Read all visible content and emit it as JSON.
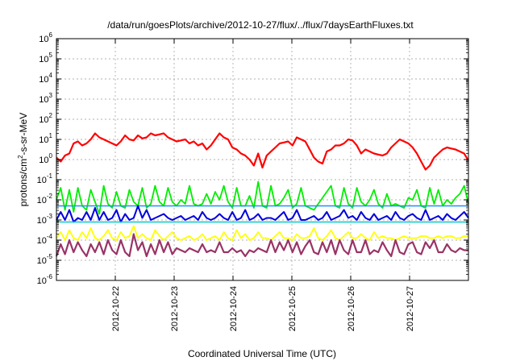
{
  "chart_data": {
    "type": "line",
    "title": "/data/run/goesPlots/archive/2012-10-27/flux/../flux/7daysEarthFluxes.txt",
    "xlabel": "Coordinated Universal Time (UTC)",
    "ylabel": "protons/cm²-s-sr-MeV",
    "ylabel_parts": {
      "pre": "protons/cm",
      "sup": "2",
      "post": "-s-sr-MeV"
    },
    "yscale": "log",
    "ylim_exp": [
      -6,
      6
    ],
    "xlim": [
      "2012-10-21T00:00",
      "2012-10-28T00:00"
    ],
    "grid": true,
    "yticks": [
      {
        "base": "10",
        "exp": "6"
      },
      {
        "base": "10",
        "exp": "5"
      },
      {
        "base": "10",
        "exp": "4"
      },
      {
        "base": "10",
        "exp": "3"
      },
      {
        "base": "10",
        "exp": "2"
      },
      {
        "base": "10",
        "exp": "1"
      },
      {
        "base": "10",
        "exp": "0"
      },
      {
        "base": "10",
        "exp": "-1"
      },
      {
        "base": "10",
        "exp": "-2"
      },
      {
        "base": "10",
        "exp": "-3"
      },
      {
        "base": "10",
        "exp": "-4"
      },
      {
        "base": "10",
        "exp": "-5"
      },
      {
        "base": "10",
        "exp": "-6"
      }
    ],
    "xticks": [
      "2012-10-22",
      "2012-10-23",
      "2012-10-24",
      "2012-10-25",
      "2012-10-26",
      "2012-10-27"
    ],
    "series": [
      {
        "color": "#ff0000",
        "width": 2.2,
        "log10_values": [
          0.1,
          -0.1,
          0.2,
          0.3,
          0.8,
          0.9,
          0.7,
          0.8,
          1.0,
          1.3,
          1.1,
          1.0,
          0.9,
          0.8,
          0.7,
          0.9,
          1.2,
          1.0,
          0.95,
          1.2,
          1.05,
          1.1,
          1.3,
          1.2,
          1.25,
          1.3,
          1.1,
          1.0,
          0.9,
          0.95,
          1.0,
          0.8,
          0.9,
          0.7,
          0.8,
          0.5,
          0.7,
          1.0,
          1.3,
          1.1,
          1.0,
          0.6,
          0.5,
          0.3,
          0.2,
          0.0,
          -0.3,
          0.3,
          -0.4,
          0.2,
          0.4,
          0.6,
          0.8,
          0.85,
          0.9,
          0.7,
          1.1,
          1.0,
          0.9,
          0.5,
          0.1,
          -0.1,
          -0.2,
          0.4,
          0.5,
          0.7,
          0.7,
          0.8,
          1.0,
          0.95,
          0.7,
          0.3,
          0.5,
          0.4,
          0.3,
          0.25,
          0.2,
          0.3,
          0.6,
          0.8,
          1.0,
          0.9,
          0.8,
          0.6,
          0.3,
          -0.1,
          -0.5,
          -0.3,
          0.1,
          0.3,
          0.5,
          0.6,
          0.55,
          0.5,
          0.4,
          0.3,
          -0.05
        ]
      },
      {
        "color": "#00ee00",
        "width": 1.8,
        "log10_values": [
          -2.0,
          -1.4,
          -2.5,
          -1.5,
          -2.6,
          -1.4,
          -2.3,
          -2.5,
          -1.5,
          -2.1,
          -2.7,
          -1.3,
          -2.2,
          -2.4,
          -1.6,
          -2.3,
          -2.4,
          -1.5,
          -2.1,
          -2.3,
          -1.4,
          -2.4,
          -2.2,
          -1.3,
          -2.1,
          -2.3,
          -1.4,
          -2.1,
          -2.3,
          -2.0,
          -2.2,
          -1.3,
          -2.2,
          -2.3,
          -2.2,
          -1.7,
          -2.2,
          -1.6,
          -2.0,
          -1.3,
          -2.1,
          -2.4,
          -1.4,
          -2.3,
          -2.3,
          -1.8,
          -2.4,
          -1.1,
          -2.3,
          -2.4,
          -1.3,
          -2.3,
          -2.2,
          -1.9,
          -1.5,
          -2.4,
          -2.2,
          -1.4,
          -2.3,
          -2.4,
          -2.5,
          -2.2,
          -1.9,
          -1.6,
          -1.3,
          -2.3,
          -2.4,
          -1.4,
          -2.2,
          -2.4,
          -1.4,
          -2.1,
          -2.3,
          -2.0,
          -1.5,
          -2.2,
          -2.4,
          -1.7,
          -2.3,
          -2.2,
          -2.3,
          -2.4,
          -1.9,
          -2.0,
          -1.5,
          -2.3,
          -2.4,
          -1.4,
          -2.2,
          -1.5,
          -2.3,
          -2.0,
          -2.2,
          -1.9,
          -1.7,
          -1.3,
          -2.2
        ]
      },
      {
        "color": "#1e90ff",
        "width": 1.6,
        "log10_values": [
          -2.3,
          -2.3,
          -2.3,
          -2.3,
          -2.3,
          -2.3,
          -2.3,
          -2.3,
          -2.3,
          -2.3,
          -2.3,
          -2.3,
          -2.3,
          -2.3,
          -2.3,
          -2.3,
          -2.3,
          -2.3,
          -2.3,
          -2.3,
          -2.3,
          -2.3,
          -2.3,
          -2.3,
          -2.3,
          -2.3,
          -2.3,
          -2.3,
          -2.3,
          -2.3,
          -2.3,
          -2.3,
          -2.3,
          -2.3,
          -2.3,
          -2.3,
          -2.3,
          -2.3,
          -2.3,
          -2.3,
          -2.3,
          -2.3,
          -2.3,
          -2.3,
          -2.3,
          -2.3,
          -2.3,
          -2.3,
          -2.3,
          -2.3,
          -2.3,
          -2.3,
          -2.3,
          -2.3,
          -2.3,
          -2.3,
          -2.3,
          -2.3,
          -2.3,
          -2.3,
          -2.3,
          -2.3,
          -2.3,
          -2.3,
          -2.3,
          -2.3,
          -2.3,
          -2.3,
          -2.3,
          -2.3,
          -2.3,
          -2.3,
          -2.3,
          -2.3,
          -2.3,
          -2.3,
          -2.3,
          -2.3,
          -2.3,
          -2.3,
          -2.3,
          -2.3,
          -2.3,
          -2.3,
          -2.3,
          -2.3,
          -2.3,
          -2.3,
          -2.3,
          -2.3,
          -2.3,
          -2.3,
          -2.3,
          -2.3,
          -2.3,
          -2.3,
          -2.3
        ]
      },
      {
        "color": "#0000dd",
        "width": 2.0,
        "log10_values": [
          -3.0,
          -2.6,
          -3.0,
          -2.5,
          -3.1,
          -2.9,
          -3.0,
          -2.6,
          -3.0,
          -2.4,
          -3.0,
          -2.6,
          -3.0,
          -2.9,
          -2.5,
          -3.1,
          -2.7,
          -3.0,
          -2.9,
          -2.3,
          -2.9,
          -2.5,
          -3.0,
          -2.9,
          -2.8,
          -2.7,
          -2.9,
          -3.0,
          -2.9,
          -2.8,
          -3.0,
          -2.9,
          -2.8,
          -3.0,
          -2.6,
          -2.9,
          -3.0,
          -2.9,
          -2.7,
          -2.9,
          -3.0,
          -2.6,
          -3.0,
          -2.9,
          -2.5,
          -3.0,
          -2.9,
          -2.7,
          -3.0,
          -2.9,
          -2.9,
          -3.0,
          -2.8,
          -2.6,
          -3.0,
          -2.9,
          -2.5,
          -3.0,
          -3.0,
          -2.9,
          -2.8,
          -3.0,
          -2.9,
          -2.6,
          -3.0,
          -2.9,
          -2.8,
          -2.5,
          -2.9,
          -2.8,
          -3.0,
          -2.6,
          -2.9,
          -3.0,
          -2.7,
          -3.0,
          -2.9,
          -2.8,
          -3.0,
          -2.6,
          -2.9,
          -3.0,
          -2.8,
          -2.7,
          -2.9,
          -3.0,
          -2.5,
          -3.0,
          -2.9,
          -2.8,
          -3.0,
          -2.7,
          -2.9,
          -3.0,
          -2.8,
          -2.6,
          -2.9
        ]
      },
      {
        "color": "#00cccc",
        "width": 1.6,
        "log10_values": [
          -3.05,
          -3.1,
          -3.1,
          -3.1,
          -3.1,
          -3.1,
          -3.1,
          -3.1,
          -3.1,
          -3.1,
          -3.1,
          -3.1,
          -3.1,
          -3.1,
          -3.1,
          -3.1,
          -3.1,
          -3.1,
          -3.1,
          -3.1,
          -3.1,
          -3.1,
          -3.1,
          -3.1,
          -3.1,
          -3.1,
          -3.1,
          -3.1,
          -3.1,
          -3.1,
          -3.1,
          -3.1,
          -3.1,
          -3.1,
          -3.1,
          -3.1,
          -3.1,
          -3.1,
          -3.1,
          -3.1,
          -3.1,
          -3.1,
          -3.1,
          -3.1,
          -3.1,
          -3.1,
          -3.1,
          -3.1,
          -3.1,
          -3.1,
          -3.1,
          -3.1,
          -3.1,
          -3.1,
          -3.1,
          -3.1,
          -3.1,
          -3.1,
          -3.1,
          -3.1,
          -3.1,
          -3.1,
          -3.1,
          -3.1,
          -3.1,
          -3.1,
          -3.1,
          -3.1,
          -3.1,
          -3.1,
          -3.1,
          -3.1,
          -3.1,
          -3.1,
          -3.1,
          -3.1,
          -3.1,
          -3.1,
          -3.1,
          -3.1,
          -3.1,
          -3.1,
          -3.1,
          -3.1,
          -3.1,
          -3.1,
          -3.1,
          -3.1,
          -3.1,
          -3.1,
          -3.1,
          -3.1,
          -3.1,
          -3.1,
          -3.1,
          -3.1,
          -3.1
        ]
      },
      {
        "color": "#ffff00",
        "width": 1.8,
        "log10_values": [
          -3.9,
          -3.6,
          -4.0,
          -3.5,
          -3.9,
          -4.0,
          -3.6,
          -3.9,
          -3.4,
          -3.9,
          -4.0,
          -3.8,
          -3.5,
          -3.9,
          -4.0,
          -3.6,
          -3.9,
          -3.8,
          -3.3,
          -3.9,
          -3.7,
          -3.9,
          -4.0,
          -3.5,
          -3.8,
          -4.0,
          -3.8,
          -3.6,
          -3.9,
          -4.0,
          -3.9,
          -3.8,
          -4.0,
          -3.9,
          -3.7,
          -4.0,
          -3.9,
          -3.8,
          -4.0,
          -3.6,
          -3.9,
          -4.0,
          -3.5,
          -3.9,
          -3.7,
          -4.0,
          -3.9,
          -3.6,
          -3.9,
          -3.9,
          -4.0,
          -3.8,
          -3.6,
          -3.9,
          -3.9,
          -4.0,
          -3.7,
          -3.9,
          -3.9,
          -3.8,
          -3.4,
          -3.9,
          -4.0,
          -3.8,
          -3.5,
          -3.9,
          -4.0,
          -3.8,
          -3.6,
          -3.9,
          -3.9,
          -3.7,
          -3.9,
          -4.0,
          -3.6,
          -3.9,
          -3.8,
          -3.9,
          -3.9,
          -4.0,
          -3.9,
          -3.8,
          -3.9,
          -3.9,
          -3.9,
          -3.8,
          -3.8,
          -3.9,
          -3.9,
          -3.8,
          -3.9,
          -3.8,
          -3.8,
          -3.9,
          -3.9,
          -3.8,
          -3.8
        ]
      },
      {
        "color": "#993366",
        "width": 2.2,
        "log10_values": [
          -4.8,
          -4.2,
          -4.7,
          -4.0,
          -4.6,
          -4.1,
          -4.5,
          -4.8,
          -4.2,
          -4.6,
          -4.1,
          -4.7,
          -4.0,
          -4.5,
          -4.7,
          -4.0,
          -4.6,
          -4.8,
          -3.7,
          -4.5,
          -4.1,
          -4.8,
          -4.2,
          -4.7,
          -4.0,
          -4.6,
          -4.1,
          -4.7,
          -4.4,
          -4.5,
          -4.6,
          -4.4,
          -4.5,
          -4.6,
          -4.2,
          -4.6,
          -4.5,
          -4.6,
          -4.1,
          -4.6,
          -4.6,
          -4.4,
          -4.6,
          -4.5,
          -4.8,
          -4.5,
          -4.6,
          -4.4,
          -4.5,
          -4.6,
          -4.0,
          -4.6,
          -4.1,
          -4.5,
          -4.0,
          -4.6,
          -4.1,
          -4.7,
          -4.3,
          -4.0,
          -4.6,
          -4.7,
          -4.1,
          -4.6,
          -4.0,
          -4.7,
          -4.0,
          -4.5,
          -4.7,
          -4.0,
          -4.6,
          -4.6,
          -4.0,
          -4.7,
          -4.5,
          -4.6,
          -4.1,
          -4.5,
          -4.8,
          -4.0,
          -4.6,
          -4.7,
          -4.2,
          -4.1,
          -4.6,
          -4.7,
          -4.1,
          -4.4,
          -4.0,
          -4.6,
          -4.6,
          -4.2,
          -4.5,
          -4.6,
          -4.4,
          -4.5,
          -4.5
        ]
      }
    ]
  }
}
